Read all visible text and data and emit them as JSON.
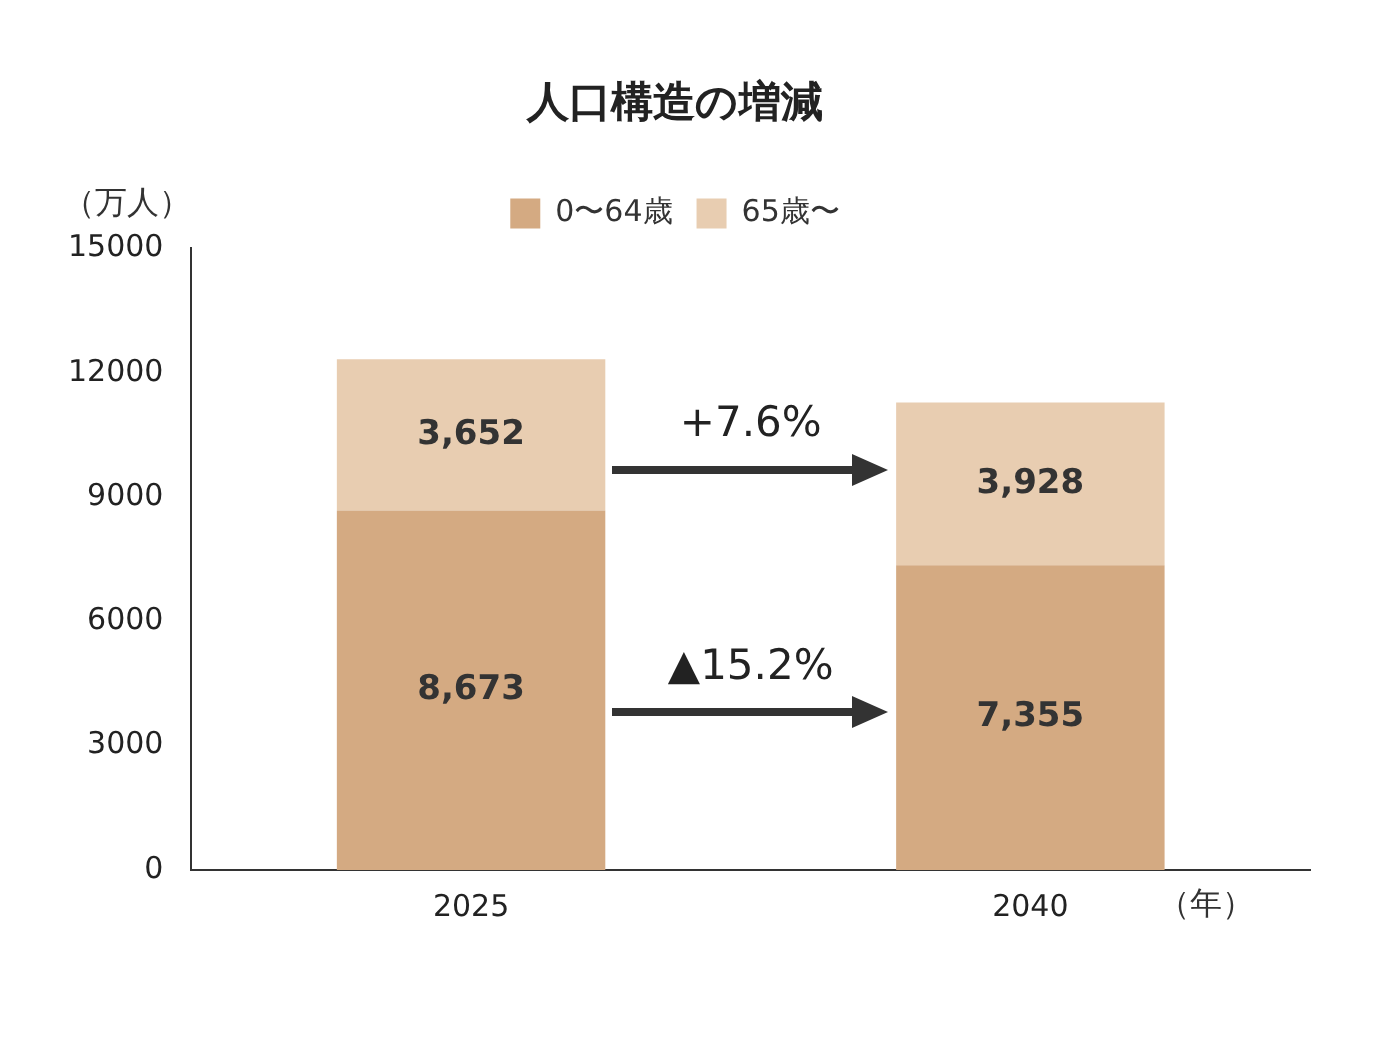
{
  "chart_data": {
    "type": "bar",
    "title": "人口構造の増減",
    "ylabel": "（万人）",
    "xlabel": "（年）",
    "categories": [
      "2025",
      "2040"
    ],
    "stacked": true,
    "series": [
      {
        "name": "0〜64歳",
        "color": "#d4aa82",
        "values": [
          8673,
          7355
        ],
        "value_labels": [
          "8,673",
          "7,355"
        ]
      },
      {
        "name": "65歳〜",
        "color": "#e8cdb1",
        "values": [
          3652,
          3928
        ],
        "value_labels": [
          "3,652",
          "3,928"
        ]
      }
    ],
    "ylim": [
      0,
      15000
    ],
    "yticks": [
      0,
      3000,
      6000,
      9000,
      12000,
      15000
    ],
    "grid": false,
    "legend": "top",
    "annotations": [
      "+7.6%",
      "▲15.2%"
    ]
  }
}
